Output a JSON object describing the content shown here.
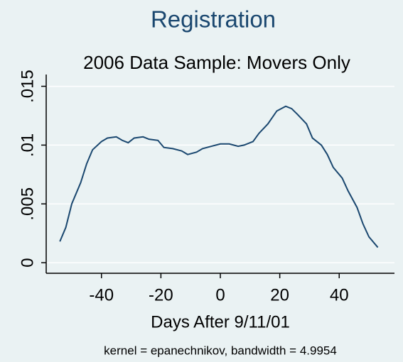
{
  "chart_data": {
    "type": "line",
    "title": "Registration",
    "subtitle": "2006 Data Sample: Movers Only",
    "x_label": "Days After 9/11/01",
    "note": "kernel = epanechnikov, bandwidth = 4.9954",
    "x": [
      -54,
      -52,
      -50,
      -47,
      -45,
      -43,
      -40,
      -38,
      -35,
      -33,
      -31,
      -29,
      -26,
      -24,
      -21,
      -19,
      -16,
      -13,
      -11,
      -8,
      -6,
      -3,
      0,
      3,
      6,
      8,
      11,
      13,
      16,
      19,
      22,
      24,
      26,
      29,
      31,
      34,
      36,
      38,
      41,
      43,
      46,
      48,
      50,
      53
    ],
    "series": [
      {
        "color": "#1a476f",
        "values": [
          0.0018,
          0.003,
          0.005,
          0.0068,
          0.0084,
          0.0096,
          0.0103,
          0.0106,
          0.0107,
          0.0104,
          0.0102,
          0.0106,
          0.0107,
          0.0105,
          0.0104,
          0.0098,
          0.0097,
          0.0095,
          0.0092,
          0.0094,
          0.0097,
          0.0099,
          0.0101,
          0.0101,
          0.0099,
          0.01,
          0.0103,
          0.011,
          0.0118,
          0.0129,
          0.0133,
          0.0131,
          0.0126,
          0.0118,
          0.0106,
          0.01,
          0.0092,
          0.0081,
          0.0072,
          0.0061,
          0.0047,
          0.0033,
          0.0022,
          0.0013
        ]
      }
    ],
    "xlim": [
      -58.6,
      58.6
    ],
    "xticks": [
      -40,
      -20,
      0,
      20,
      40
    ],
    "ylim": [
      -0.0009,
      0.016
    ],
    "yticks": [
      0,
      {
        "value": 0.005,
        "label": ".005"
      },
      {
        "value": 0.01,
        "label": ".01"
      },
      {
        "value": 0.015,
        "label": ".015"
      }
    ],
    "grid": true
  }
}
